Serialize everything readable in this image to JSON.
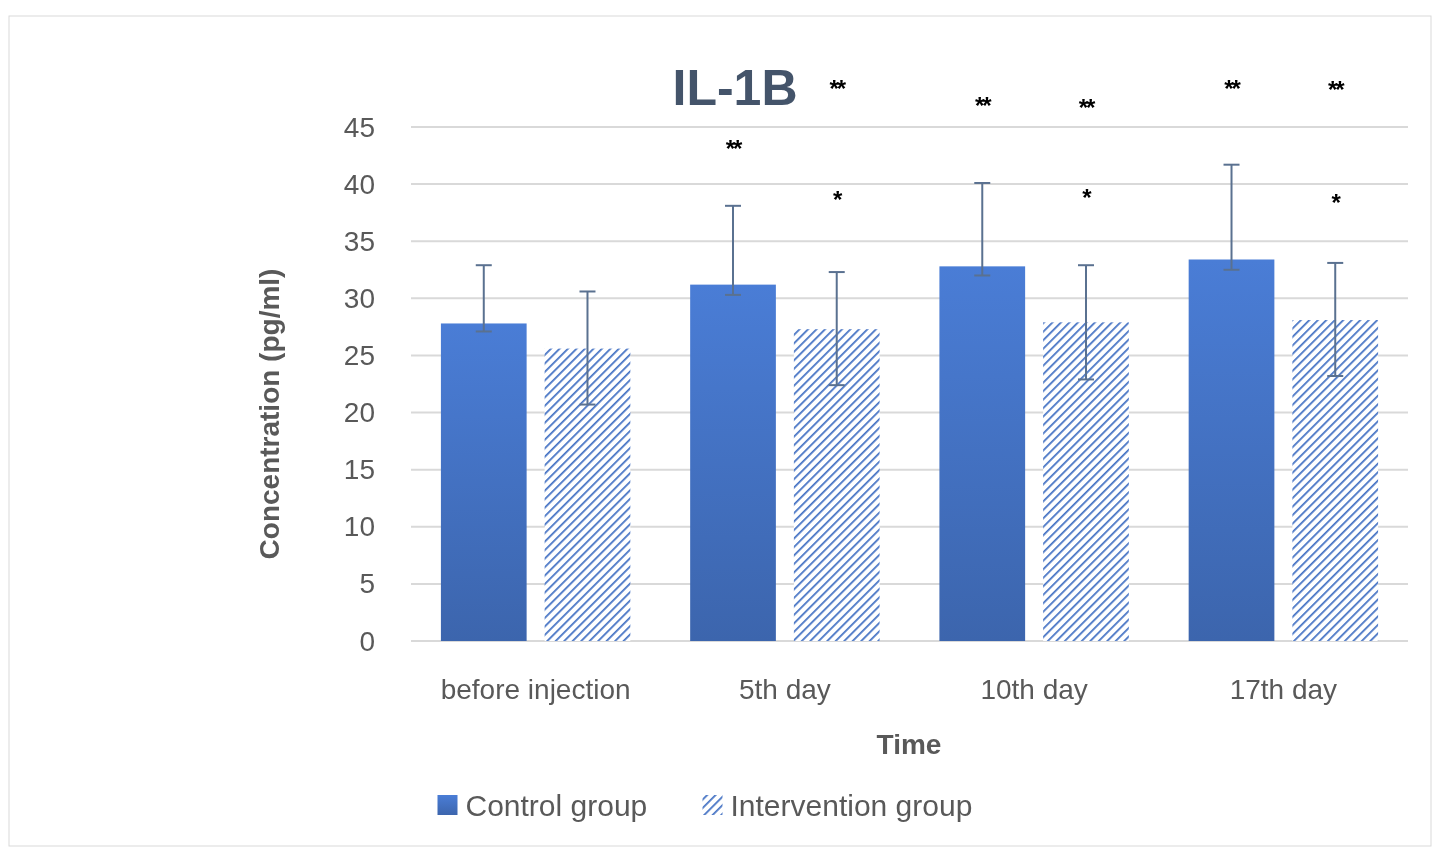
{
  "chart_data": {
    "type": "bar",
    "title": "IL-1B",
    "xlabel": "Time",
    "ylabel": "Concentration (pg/ml)",
    "categories": [
      "before injection",
      "5th day",
      "10th day",
      "17th day"
    ],
    "series": [
      {
        "name": "Control group",
        "color": "#4472c4",
        "values": [
          27.8,
          31.2,
          32.8,
          33.4
        ],
        "errors": [
          [
            27.1,
            32.9
          ],
          [
            30.3,
            38.1
          ],
          [
            32.0,
            40.1
          ],
          [
            32.5,
            41.7
          ]
        ]
      },
      {
        "name": "Intervention group",
        "color": "#4472c4",
        "values": [
          25.6,
          27.3,
          27.9,
          28.1
        ],
        "errors": [
          [
            20.7,
            30.6
          ],
          [
            22.4,
            32.3
          ],
          [
            22.9,
            32.9
          ],
          [
            23.2,
            33.1
          ]
        ]
      }
    ],
    "ylim": [
      0,
      45
    ],
    "yticks": [
      0,
      5,
      10,
      15,
      20,
      25,
      30,
      35,
      40,
      45
    ],
    "grid": "y",
    "legend": "bottom",
    "annotations": [
      "**",
      "*",
      "**",
      "**",
      "*",
      "**",
      "**",
      "*",
      "**"
    ]
  }
}
